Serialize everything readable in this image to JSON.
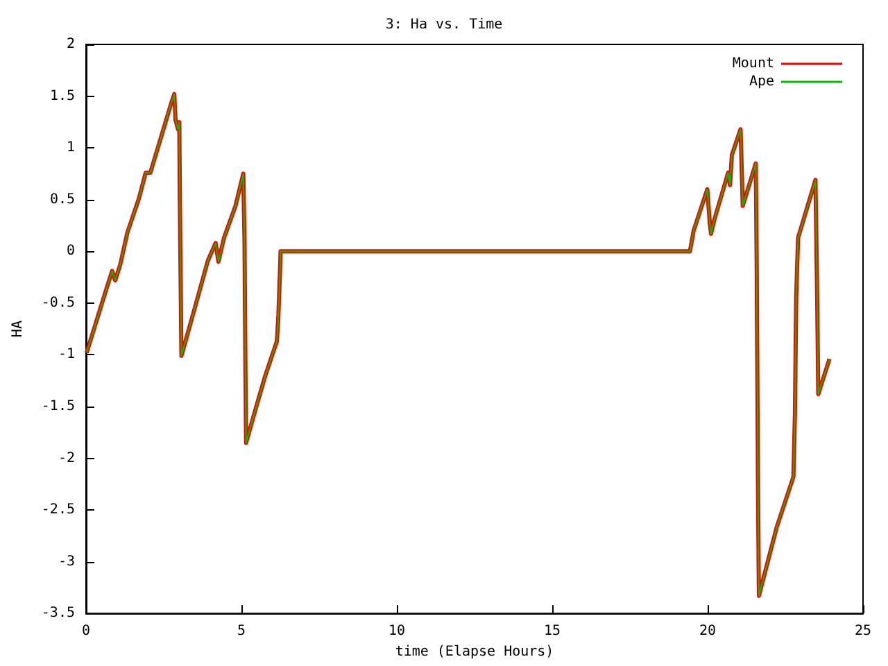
{
  "chart_data": {
    "type": "line",
    "title": "3: Ha vs. Time",
    "xlabel": "time (Elapse Hours)",
    "ylabel": "HA",
    "x": [
      0.02,
      0.36,
      0.66,
      0.84,
      0.94,
      1.1,
      1.33,
      1.7,
      1.92,
      2.07,
      2.29,
      2.51,
      2.73,
      2.84,
      2.88,
      2.96,
      3.0,
      3.03,
      3.07,
      3.47,
      3.92,
      4.17,
      4.26,
      4.44,
      4.81,
      5.06,
      5.1,
      5.13,
      5.15,
      5.47,
      5.77,
      6.14,
      6.19,
      6.24,
      6.26,
      19.43,
      19.55,
      19.99,
      20.07,
      20.11,
      20.22,
      20.66,
      20.72,
      20.78,
      21.06,
      21.13,
      21.55,
      21.58,
      21.62,
      21.65,
      22.22,
      22.76,
      22.81,
      22.85,
      22.91,
      23.47,
      23.52,
      23.56,
      23.92
    ],
    "series": [
      {
        "name": "Mount",
        "color": "#ff0000",
        "values": [
          -0.98,
          -0.65,
          -0.36,
          -0.19,
          -0.28,
          -0.13,
          0.18,
          0.51,
          0.76,
          0.76,
          0.98,
          1.2,
          1.42,
          1.52,
          1.27,
          1.18,
          1.25,
          0.13,
          -1.01,
          -0.58,
          -0.09,
          0.08,
          -0.1,
          0.13,
          0.44,
          0.75,
          0.09,
          -1.18,
          -1.85,
          -1.51,
          -1.2,
          -0.87,
          -0.62,
          -0.2,
          0,
          0,
          0.2,
          0.6,
          0.27,
          0.17,
          0.31,
          0.76,
          0.64,
          0.93,
          1.18,
          0.44,
          0.85,
          -0.18,
          -2.27,
          -3.33,
          -2.67,
          -2.18,
          -1.56,
          -0.44,
          0.13,
          0.69,
          -0.33,
          -1.38,
          -1.04
        ]
      },
      {
        "name": "Ape",
        "color": "#00c000",
        "values": [
          -0.98,
          -0.65,
          -0.36,
          -0.19,
          -0.28,
          -0.13,
          0.18,
          0.51,
          0.76,
          0.76,
          0.98,
          1.2,
          1.42,
          1.52,
          1.27,
          1.18,
          1.25,
          0.13,
          -1.01,
          -0.58,
          -0.09,
          0.08,
          -0.1,
          0.13,
          0.44,
          0.75,
          0.09,
          -1.18,
          -1.85,
          -1.51,
          -1.2,
          -0.87,
          -0.62,
          -0.2,
          0,
          0,
          0.2,
          0.6,
          0.27,
          0.17,
          0.31,
          0.76,
          0.64,
          0.93,
          1.18,
          0.44,
          0.85,
          -0.18,
          -2.27,
          -3.33,
          -2.67,
          -2.18,
          -1.56,
          -0.44,
          0.13,
          0.69,
          -0.33,
          -1.38,
          -1.04
        ]
      }
    ],
    "xlim": [
      0,
      25
    ],
    "xticks": [
      0,
      5,
      10,
      15,
      20,
      25
    ],
    "ylim": [
      -3.5,
      2
    ],
    "yticks": [
      -3.5,
      -3,
      -2.5,
      -2,
      -1.5,
      -1,
      -0.5,
      0,
      0.5,
      1,
      1.5,
      2
    ],
    "grid": false,
    "legend": "top right",
    "marker": "none",
    "line_style": "solid"
  }
}
